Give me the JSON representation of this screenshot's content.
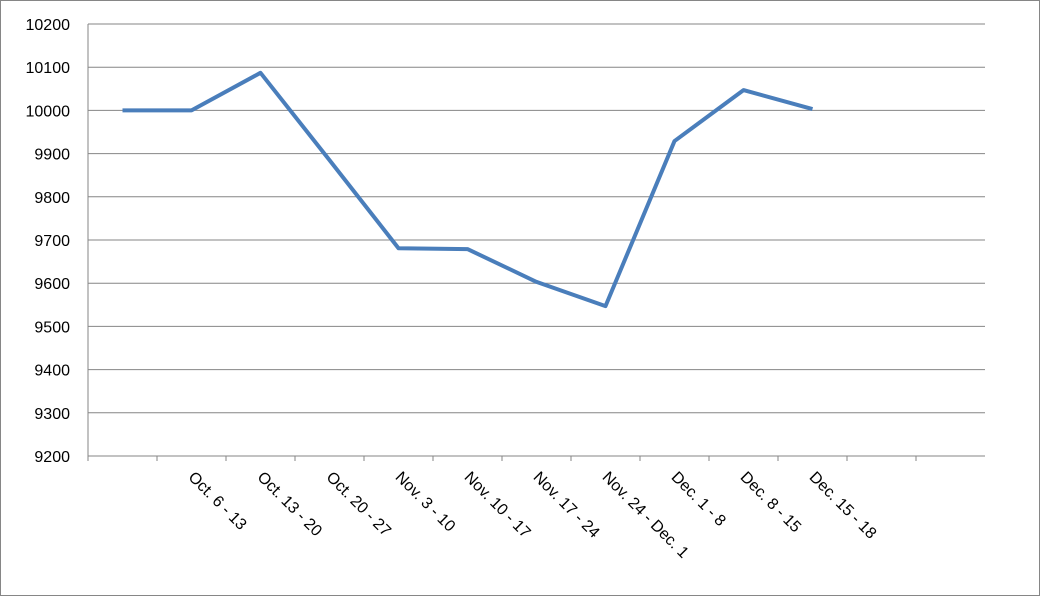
{
  "chart_data": {
    "type": "line",
    "categories": [
      null,
      "Oct. 6 - 13",
      "Oct. 13 - 20",
      "Oct. 20 - 27",
      "Nov. 3 - 10",
      "Nov. 10 - 17",
      "Nov. 17 - 24",
      "Nov. 24 - Dec. 1",
      "Dec. 1 - 8",
      "Dec. 8 - 15",
      "Dec. 15 - 18",
      null,
      null
    ],
    "series": [
      {
        "color": "#4a7ebb",
        "values": [
          10000,
          10000,
          10087,
          9885,
          9681,
          9679,
          9603,
          9547,
          9929,
          10047,
          10003,
          null,
          null
        ]
      }
    ],
    "ylim": [
      9200,
      10200
    ],
    "yticks": [
      9200,
      9300,
      9400,
      9500,
      9600,
      9700,
      9800,
      9900,
      10000,
      10100,
      10200
    ],
    "grid": true
  }
}
